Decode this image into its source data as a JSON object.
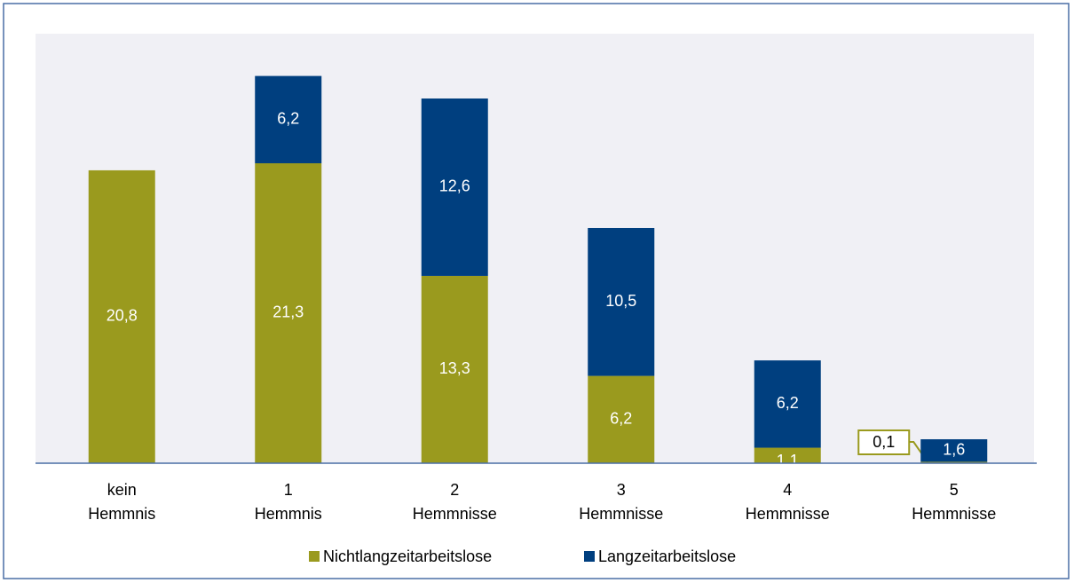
{
  "chart_data": {
    "type": "stacked_bar",
    "categories": [
      [
        "kein",
        "Hemmnis"
      ],
      [
        "1",
        "Hemmnis"
      ],
      [
        "2",
        "Hemmnisse"
      ],
      [
        "3",
        "Hemmnisse"
      ],
      [
        "4",
        "Hemmnisse"
      ],
      [
        "5",
        "Hemmnisse"
      ]
    ],
    "series": [
      {
        "name": "Nichtlangzeitarbeitslose",
        "color": "#9a9a1e",
        "values": [
          20.8,
          21.3,
          13.3,
          6.2,
          1.1,
          0.1
        ],
        "value_labels": [
          "20,8",
          "21,3",
          "13,3",
          "6,2",
          "1,1",
          "0,1"
        ]
      },
      {
        "name": "Langzeitarbeitslose",
        "color": "#003f7f",
        "values": [
          null,
          6.2,
          12.6,
          10.5,
          6.2,
          1.6
        ],
        "value_labels": [
          null,
          "6,2",
          "12,6",
          "10,5",
          "6,2",
          "1,6"
        ]
      }
    ],
    "ylim": [
      0,
      30.5
    ],
    "legend": "bottom"
  }
}
